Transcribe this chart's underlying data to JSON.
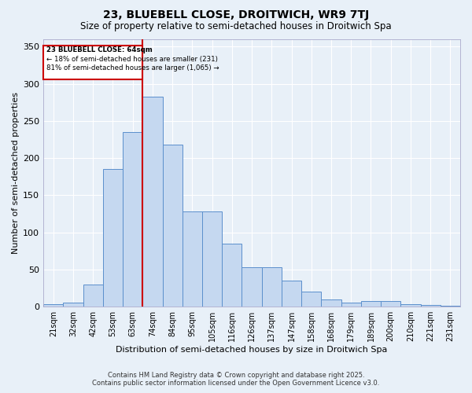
{
  "title_line1": "23, BLUEBELL CLOSE, DROITWICH, WR9 7TJ",
  "title_line2": "Size of property relative to semi-detached houses in Droitwich Spa",
  "xlabel": "Distribution of semi-detached houses by size in Droitwich Spa",
  "ylabel": "Number of semi-detached properties",
  "bin_labels": [
    "21sqm",
    "32sqm",
    "42sqm",
    "53sqm",
    "63sqm",
    "74sqm",
    "84sqm",
    "95sqm",
    "105sqm",
    "116sqm",
    "126sqm",
    "137sqm",
    "147sqm",
    "158sqm",
    "168sqm",
    "179sqm",
    "189sqm",
    "200sqm",
    "210sqm",
    "221sqm",
    "231sqm"
  ],
  "bar_heights": [
    3,
    6,
    30,
    185,
    235,
    283,
    218,
    128,
    128,
    85,
    53,
    53,
    35,
    20,
    10,
    5,
    8,
    8,
    3,
    2,
    1
  ],
  "bar_color": "#c5d8f0",
  "bar_edge_color": "#5b8fcc",
  "red_line_color": "#cc0000",
  "annotation_box_color": "#cc0000",
  "annotation_text_line1": "23 BLUEBELL CLOSE: 64sqm",
  "annotation_text_line2": "← 18% of semi-detached houses are smaller (231)",
  "annotation_text_line3": "81% of semi-detached houses are larger (1,065) →",
  "red_line_bin_index": 4,
  "ylim": [
    0,
    360
  ],
  "yticks": [
    0,
    50,
    100,
    150,
    200,
    250,
    300,
    350
  ],
  "background_color": "#e8f0f8",
  "grid_color": "#ffffff",
  "footnote_line1": "Contains HM Land Registry data © Crown copyright and database right 2025.",
  "footnote_line2": "Contains public sector information licensed under the Open Government Licence v3.0."
}
